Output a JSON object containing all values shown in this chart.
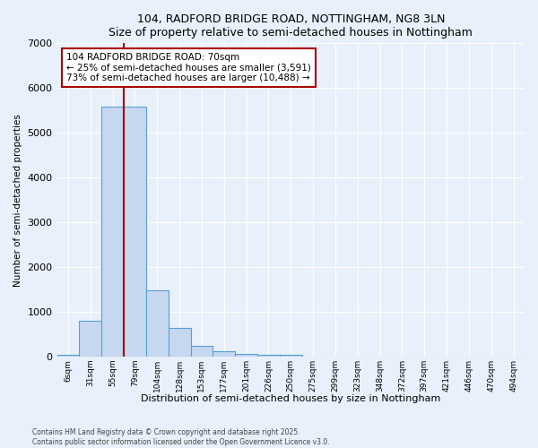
{
  "title": "104, RADFORD BRIDGE ROAD, NOTTINGHAM, NG8 3LN",
  "subtitle": "Size of property relative to semi-detached houses in Nottingham",
  "xlabel": "Distribution of semi-detached houses by size in Nottingham",
  "ylabel": "Number of semi-detached properties",
  "categories": [
    "6sqm",
    "31sqm",
    "55sqm",
    "79sqm",
    "104sqm",
    "128sqm",
    "153sqm",
    "177sqm",
    "201sqm",
    "226sqm",
    "250sqm",
    "275sqm",
    "299sqm",
    "323sqm",
    "348sqm",
    "372sqm",
    "397sqm",
    "421sqm",
    "446sqm",
    "470sqm",
    "494sqm"
  ],
  "values": [
    50,
    800,
    5580,
    5580,
    1480,
    650,
    250,
    120,
    70,
    50,
    50,
    0,
    0,
    0,
    0,
    0,
    0,
    0,
    0,
    0,
    0
  ],
  "bar_color": "#c5d8f0",
  "bar_edge_color": "#5a9fd4",
  "vline_x": 2.5,
  "vline_color": "#aa0000",
  "annotation_text": "104 RADFORD BRIDGE ROAD: 70sqm\n← 25% of semi-detached houses are smaller (3,591)\n73% of semi-detached houses are larger (10,488) →",
  "annotation_box_color": "#ffffff",
  "annotation_box_edge": "#aa0000",
  "background_color": "#e8f0fb",
  "plot_background": "#e8f0fb",
  "grid_color": "#ffffff",
  "ylim": [
    0,
    7000
  ],
  "yticks": [
    0,
    1000,
    2000,
    3000,
    4000,
    5000,
    6000,
    7000
  ],
  "footer_line1": "Contains HM Land Registry data © Crown copyright and database right 2025.",
  "footer_line2": "Contains public sector information licensed under the Open Government Licence v3.0."
}
